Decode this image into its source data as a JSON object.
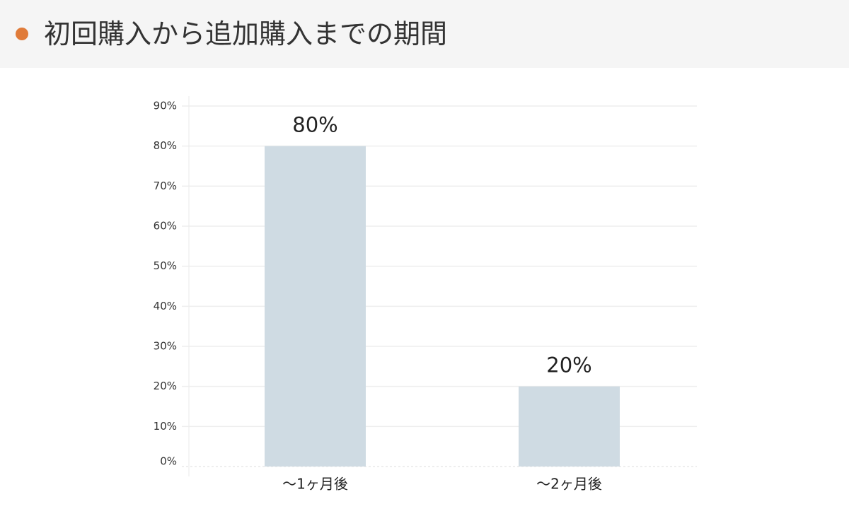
{
  "header": {
    "title": "初回購入から追加購入までの期間",
    "bullet_color": "#e07b39"
  },
  "chart_data": {
    "type": "bar",
    "categories": [
      "〜1ヶ月後",
      "〜2ヶ月後"
    ],
    "values": [
      80,
      20
    ],
    "data_labels": [
      "80%",
      "20%"
    ],
    "ylim": [
      0,
      90
    ],
    "yticks": [
      "0%",
      "10%",
      "20%",
      "30%",
      "40%",
      "50%",
      "60%",
      "70%",
      "80%",
      "90%"
    ],
    "grid": true,
    "legend": "none",
    "bar_color": "#cfdbe3"
  }
}
